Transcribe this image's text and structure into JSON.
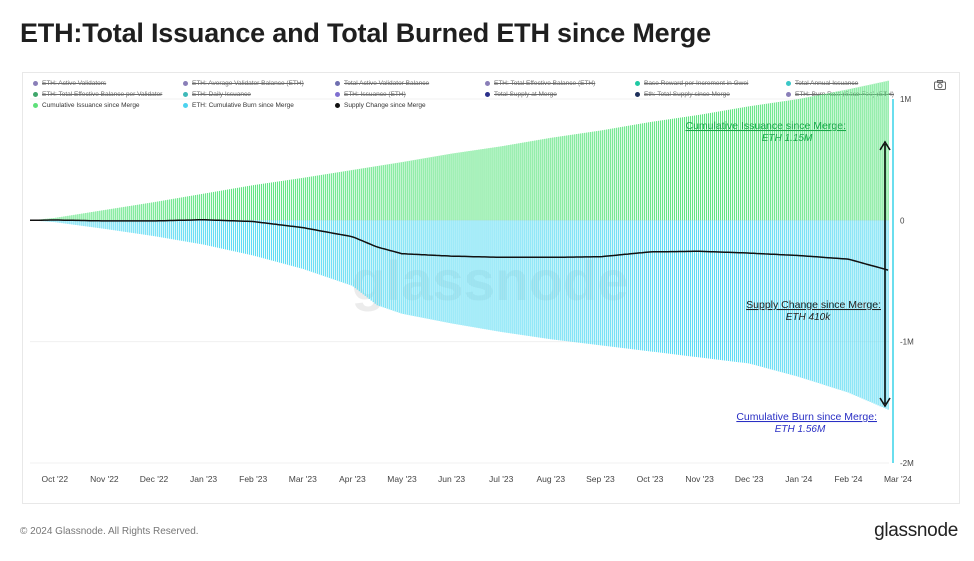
{
  "title": "ETH:Total Issuance and Total Burned ETH since Merge",
  "legend": [
    {
      "label": "ETH: Active Validators",
      "color": "#8a7fb8",
      "active": false
    },
    {
      "label": "ETH: Average Validator Balance (ETH)",
      "color": "#8a7fb8",
      "active": false
    },
    {
      "label": "Total Active Validator Balance",
      "color": "#6f6fb0",
      "active": false
    },
    {
      "label": "ETH: Total Effective Balance (ETH)",
      "color": "#8a7fb8",
      "active": false
    },
    {
      "label": "Base Reward per Increment in Gwei",
      "color": "#1fc9a3",
      "active": false
    },
    {
      "label": "Total Annual Issuance",
      "color": "#3ac7c7",
      "active": false
    },
    {
      "label": "ETH: Total Effective Balance per Validator",
      "color": "#3fa66a",
      "active": false
    },
    {
      "label": "ETH: Daily Issuance",
      "color": "#3fb9b9",
      "active": false
    },
    {
      "label": "ETH: Issuance (ETH)",
      "color": "#7f6fd0",
      "active": false
    },
    {
      "label": "Total Supply at Merge",
      "color": "#2a2f8a",
      "active": false
    },
    {
      "label": "Eth: Total Supply since Merge",
      "color": "#1d2f5a",
      "active": false
    },
    {
      "label": "ETH: Burn Rate (Base Fee) (ETH)",
      "color": "#8a7fb8",
      "active": false
    },
    {
      "label": "Cumulative Issuance since Merge",
      "color": "#5ee07a",
      "active": true
    },
    {
      "label": "ETH: Cumulative Burn since Merge",
      "color": "#4cd3ef",
      "active": true
    },
    {
      "label": "Supply Change since Merge",
      "color": "#111111",
      "active": true
    }
  ],
  "footer": "© 2024 Glassnode. All Rights Reserved.",
  "brand": "glassnode",
  "watermark": "glassnode",
  "colors": {
    "issuance": "#62e584",
    "burn": "#5fdcf3",
    "supply": "#111111",
    "accent": "#2ad0e6",
    "issuance_label": "#1aa84a",
    "burn_label": "#2a2fc4"
  },
  "chart_data": {
    "type": "bar",
    "x_labels": [
      "Oct '22",
      "Nov '22",
      "Dec '22",
      "Jan '23",
      "Feb '23",
      "Mar '23",
      "Apr '23",
      "May '23",
      "Jun '23",
      "Jul '23",
      "Aug '23",
      "Sep '23",
      "Oct '23",
      "Nov '23",
      "Dec '23",
      "Jan '24",
      "Feb '24",
      "Mar '24"
    ],
    "y_ticks": [
      1000000,
      0,
      -1000000,
      -2000000
    ],
    "y_tick_labels": [
      "1M",
      "0",
      "-1M",
      "-2M"
    ],
    "ylim": [
      -2000000,
      1000000
    ],
    "series": [
      {
        "name": "Cumulative Issuance since Merge",
        "points": [
          [
            0,
            0
          ],
          [
            0.5,
            20000
          ],
          [
            1.5,
            85000
          ],
          [
            2.5,
            150000
          ],
          [
            3.5,
            220000
          ],
          [
            4.5,
            290000
          ],
          [
            5.5,
            350000
          ],
          [
            6.5,
            415000
          ],
          [
            7.5,
            480000
          ],
          [
            8.5,
            550000
          ],
          [
            9.5,
            610000
          ],
          [
            10.5,
            680000
          ],
          [
            11.5,
            740000
          ],
          [
            12.5,
            810000
          ],
          [
            13.5,
            870000
          ],
          [
            14.5,
            940000
          ],
          [
            15.5,
            1000000
          ],
          [
            16.5,
            1080000
          ],
          [
            17.3,
            1150000
          ]
        ]
      },
      {
        "name": "ETH: Cumulative Burn since Merge",
        "points": [
          [
            0,
            0
          ],
          [
            0.5,
            -15000
          ],
          [
            1.5,
            -70000
          ],
          [
            2.5,
            -130000
          ],
          [
            3.5,
            -200000
          ],
          [
            4.5,
            -290000
          ],
          [
            5.5,
            -400000
          ],
          [
            6.5,
            -540000
          ],
          [
            7.0,
            -700000
          ],
          [
            7.5,
            -770000
          ],
          [
            8.5,
            -850000
          ],
          [
            9.5,
            -920000
          ],
          [
            10.5,
            -980000
          ],
          [
            11.5,
            -1030000
          ],
          [
            12.5,
            -1080000
          ],
          [
            13.5,
            -1130000
          ],
          [
            14.5,
            -1180000
          ],
          [
            15.5,
            -1290000
          ],
          [
            16.5,
            -1420000
          ],
          [
            17.3,
            -1560000
          ]
        ]
      },
      {
        "name": "Supply Change since Merge",
        "points": [
          [
            0,
            0
          ],
          [
            0.5,
            3000
          ],
          [
            1.5,
            -5000
          ],
          [
            2.5,
            -5000
          ],
          [
            3.5,
            5000
          ],
          [
            4.5,
            -10000
          ],
          [
            5.5,
            -60000
          ],
          [
            6.5,
            -135000
          ],
          [
            7.0,
            -220000
          ],
          [
            7.5,
            -275000
          ],
          [
            8.5,
            -295000
          ],
          [
            9.5,
            -305000
          ],
          [
            10.5,
            -305000
          ],
          [
            11.5,
            -300000
          ],
          [
            12.5,
            -260000
          ],
          [
            13.5,
            -255000
          ],
          [
            14.5,
            -270000
          ],
          [
            15.5,
            -290000
          ],
          [
            16.5,
            -320000
          ],
          [
            17.3,
            -410000
          ]
        ]
      }
    ],
    "annotations": [
      {
        "title": "Cumulative Issuance since Merge:",
        "value": "ETH 1.15M"
      },
      {
        "title": "Supply Change since Merge:",
        "value": "ETH 410k"
      },
      {
        "title": "Cumulative Burn since Merge:",
        "value": "ETH 1.56M"
      }
    ]
  }
}
